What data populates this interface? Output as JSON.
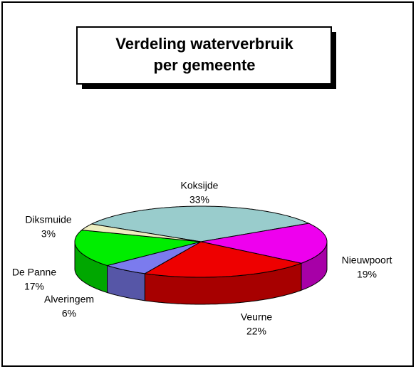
{
  "chart_data": {
    "type": "pie3d",
    "title": [
      "Verdeling waterverbruik",
      "per gemeente"
    ],
    "categories": [
      "Koksijde",
      "Nieuwpoort",
      "Veurne",
      "Alveringem",
      "De Panne",
      "Diksmuide"
    ],
    "values": [
      33,
      19,
      22,
      6,
      17,
      3
    ],
    "value_labels": [
      "33%",
      "19%",
      "22%",
      "6%",
      "17%",
      "3%"
    ],
    "colors": [
      "#99cccc",
      "#ee00ee",
      "#ee0000",
      "#7b7bee",
      "#00ee00",
      "#eeeec0"
    ]
  }
}
